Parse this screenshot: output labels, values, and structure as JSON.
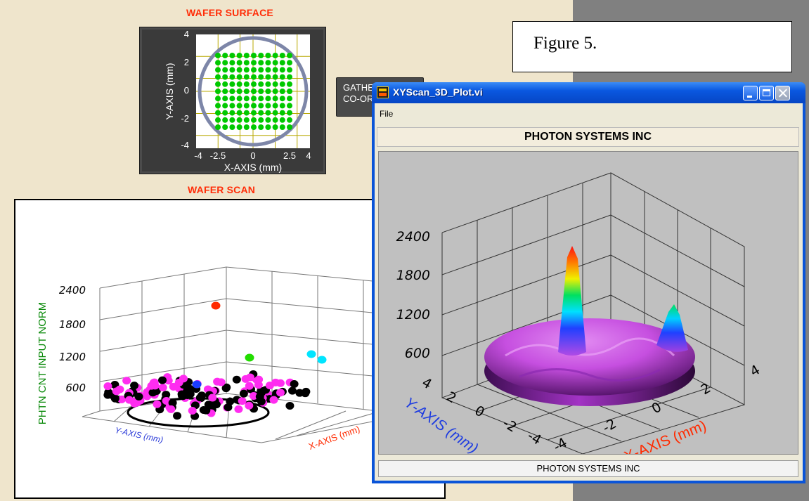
{
  "wafer_surface": {
    "title": "WAFER SURFACE",
    "x_label": "X-AXIS (mm)",
    "y_label": "Y-AXIS (mm)",
    "x_ticks": [
      "-4",
      "-2.5",
      "0",
      "2.5",
      "4"
    ],
    "y_ticks": [
      "4",
      "2",
      "0",
      "-2",
      "-4"
    ],
    "point_color": "#00c800",
    "grid_color": "#b8a800",
    "circle_color": "#7d86a8"
  },
  "gather_button": {
    "line1": "GATHER",
    "line2": "CO-ORD"
  },
  "figure_caption": "Figure 5.",
  "wafer_scan": {
    "title": "WAFER SCAN",
    "z_label": "PHTN CNT INPUT NORM",
    "y_axis_label": "Y-AXIS (mm)",
    "x_axis_label": "X-AXIS (mm)",
    "z_ticks": [
      "2400",
      "1800",
      "1200",
      "600"
    ],
    "colors": {
      "black": "#000000",
      "magenta": "#ff2cf0",
      "red": "#ff2a00",
      "green": "#22dd00",
      "cyan": "#00e5ff",
      "blue": "#1a3cff"
    }
  },
  "window": {
    "title": "XYScan_3D_Plot.vi",
    "menu_file": "File",
    "header": "PHOTON SYSTEMS INC",
    "status": "PHOTON SYSTEMS INC",
    "z_ticks": [
      "2400",
      "1800",
      "1200",
      "600"
    ],
    "y_label": "Y-AXIS (mm)",
    "x_label": "X-AXIS (mm)",
    "y_ticks": [
      "4",
      "2",
      "0",
      "-2",
      "-4"
    ],
    "x_ticks": [
      "-4",
      "-2",
      "0",
      "2",
      "4"
    ],
    "surface_color": "#c944e8"
  }
}
